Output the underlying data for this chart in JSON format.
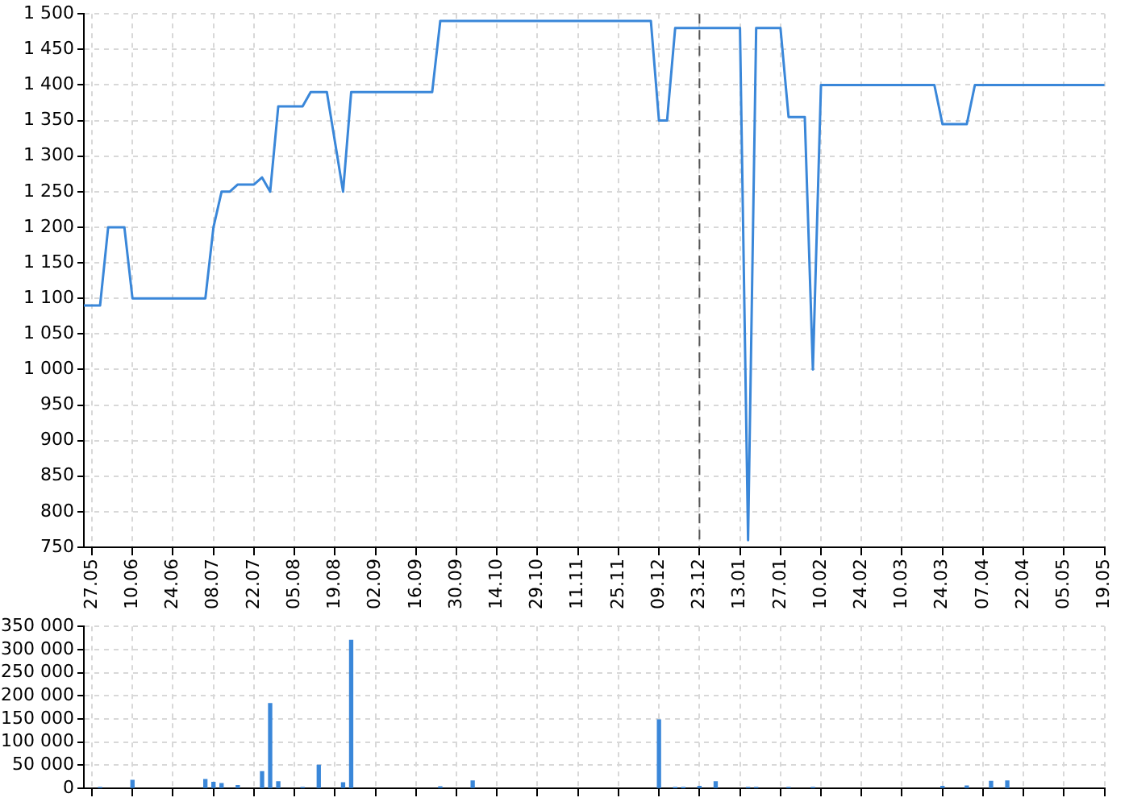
{
  "chart_data": [
    {
      "type": "line",
      "color": "#3a87d9",
      "categories": [
        null,
        "27.05",
        null,
        null,
        null,
        null,
        "10.06",
        null,
        null,
        null,
        null,
        "24.06",
        null,
        null,
        null,
        null,
        "08.07",
        null,
        null,
        null,
        null,
        "22.07",
        null,
        null,
        null,
        null,
        "05.08",
        null,
        null,
        null,
        null,
        "19.08",
        null,
        null,
        null,
        null,
        "02.09",
        null,
        null,
        null,
        null,
        "16.09",
        null,
        null,
        null,
        null,
        "30.09",
        null,
        null,
        null,
        null,
        "14.10",
        null,
        null,
        null,
        null,
        "29.10",
        null,
        null,
        null,
        null,
        "11.11",
        null,
        null,
        null,
        null,
        "25.11",
        null,
        null,
        null,
        null,
        "09.12",
        null,
        null,
        null,
        null,
        "23.12",
        null,
        null,
        null,
        null,
        "13.01",
        null,
        null,
        null,
        null,
        "27.01",
        null,
        null,
        null,
        null,
        "10.02",
        null,
        null,
        null,
        null,
        "24.02",
        null,
        null,
        null,
        null,
        "10.03",
        null,
        null,
        null,
        null,
        "24.03",
        null,
        null,
        null,
        null,
        "07.04",
        null,
        null,
        null,
        null,
        "22.04",
        null,
        null,
        null,
        null,
        "05.05",
        null,
        null,
        null,
        null,
        "19.05"
      ],
      "values": [
        1090,
        1090,
        1090,
        1200,
        1200,
        1200,
        1100,
        1100,
        1100,
        1100,
        1100,
        1100,
        1100,
        1100,
        1100,
        1100,
        1200,
        1250,
        1250,
        1260,
        1260,
        1260,
        1270,
        1250,
        1370,
        1370,
        1370,
        1370,
        1390,
        1390,
        1390,
        1320,
        1250,
        1390,
        1390,
        1390,
        1390,
        1390,
        1390,
        1390,
        1390,
        1390,
        1390,
        1390,
        1490,
        1490,
        1490,
        1490,
        1490,
        1490,
        1490,
        1490,
        1490,
        1490,
        1490,
        1490,
        1490,
        1490,
        1490,
        1490,
        1490,
        1490,
        1490,
        1490,
        1490,
        1490,
        1490,
        1490,
        1490,
        1490,
        1490,
        1350,
        1350,
        1480,
        1480,
        1480,
        1480,
        1480,
        1480,
        1480,
        1480,
        1480,
        760,
        1480,
        1480,
        1480,
        1480,
        1355,
        1355,
        1355,
        1000,
        1400,
        1400,
        1400,
        1400,
        1400,
        1400,
        1400,
        1400,
        1400,
        1400,
        1400,
        1400,
        1400,
        1400,
        1400,
        1345,
        1345,
        1345,
        1345,
        1400,
        1400,
        1400,
        1400,
        1400,
        1400,
        1400,
        1400,
        1400,
        1400,
        1400,
        1400,
        1400,
        1400,
        1400,
        1400,
        1400
      ],
      "ylim": [
        750,
        1500
      ],
      "yticks": [
        750,
        800,
        850,
        900,
        950,
        {
          "value": 1000,
          "label": "1 000"
        },
        {
          "value": 1050,
          "label": "1 050"
        },
        {
          "value": 1100,
          "label": "1 100"
        },
        {
          "value": 1150,
          "label": "1 150"
        },
        {
          "value": 1200,
          "label": "1 200"
        },
        {
          "value": 1250,
          "label": "1 250"
        },
        {
          "value": 1300,
          "label": "1 300"
        },
        {
          "value": 1350,
          "label": "1 350"
        },
        {
          "value": 1400,
          "label": "1 400"
        },
        {
          "value": 1450,
          "label": "1 450"
        },
        {
          "value": 1500,
          "label": "1 500"
        }
      ],
      "grid": true,
      "ref_lines": [
        {
          "axis": "x",
          "value": "23.12",
          "color": "#555555",
          "line_style": "dashed"
        }
      ]
    },
    {
      "type": "bar",
      "color": "#3a87d9",
      "tick_labels": "y",
      "categories": [
        null,
        "27.05",
        null,
        null,
        null,
        null,
        "10.06",
        null,
        null,
        null,
        null,
        "24.06",
        null,
        null,
        null,
        null,
        "08.07",
        null,
        null,
        null,
        null,
        "22.07",
        null,
        null,
        null,
        null,
        "05.08",
        null,
        null,
        null,
        null,
        "19.08",
        null,
        null,
        null,
        null,
        "02.09",
        null,
        null,
        null,
        null,
        "16.09",
        null,
        null,
        null,
        null,
        "30.09",
        null,
        null,
        null,
        null,
        "14.10",
        null,
        null,
        null,
        null,
        "29.10",
        null,
        null,
        null,
        null,
        "11.11",
        null,
        null,
        null,
        null,
        "25.11",
        null,
        null,
        null,
        null,
        "09.12",
        null,
        null,
        null,
        null,
        "23.12",
        null,
        null,
        null,
        null,
        "13.01",
        null,
        null,
        null,
        null,
        "27.01",
        null,
        null,
        null,
        null,
        "10.02",
        null,
        null,
        null,
        null,
        "24.02",
        null,
        null,
        null,
        null,
        "10.03",
        null,
        null,
        null,
        null,
        "24.03",
        null,
        null,
        null,
        null,
        "07.04",
        null,
        null,
        null,
        null,
        "22.04",
        null,
        null,
        null,
        null,
        "05.05",
        null,
        null,
        null,
        null,
        "19.05"
      ],
      "values": [
        null,
        null,
        2000,
        null,
        null,
        null,
        17000,
        null,
        null,
        null,
        null,
        null,
        null,
        null,
        null,
        19000,
        13000,
        10000,
        null,
        6000,
        null,
        null,
        36000,
        183000,
        14000,
        null,
        null,
        2000,
        null,
        50000,
        null,
        null,
        12000,
        320000,
        null,
        null,
        null,
        null,
        null,
        null,
        null,
        null,
        null,
        null,
        3000,
        null,
        null,
        null,
        16000,
        null,
        null,
        null,
        null,
        null,
        null,
        null,
        null,
        null,
        null,
        null,
        null,
        null,
        null,
        null,
        null,
        null,
        null,
        null,
        null,
        null,
        null,
        148000,
        null,
        1000,
        1000,
        null,
        4000,
        null,
        14000,
        null,
        null,
        null,
        2000,
        2000,
        null,
        null,
        null,
        2000,
        null,
        null,
        2000,
        null,
        null,
        null,
        null,
        null,
        null,
        null,
        null,
        null,
        null,
        null,
        null,
        null,
        null,
        null,
        4000,
        null,
        null,
        5000,
        null,
        null,
        15000,
        null,
        16000,
        null,
        null,
        null,
        null,
        null,
        null,
        null,
        null,
        null,
        null,
        null,
        null
      ],
      "ylim": [
        0,
        350000
      ],
      "yticks": [
        0,
        {
          "value": 50000,
          "label": "50 000"
        },
        {
          "value": 100000,
          "label": "100 000"
        },
        {
          "value": 150000,
          "label": "150 000"
        },
        {
          "value": 200000,
          "label": "200 000"
        },
        {
          "value": 250000,
          "label": "250 000"
        },
        {
          "value": 300000,
          "label": "300 000"
        },
        {
          "value": 350000,
          "label": "350 000"
        }
      ],
      "grid": true
    }
  ]
}
